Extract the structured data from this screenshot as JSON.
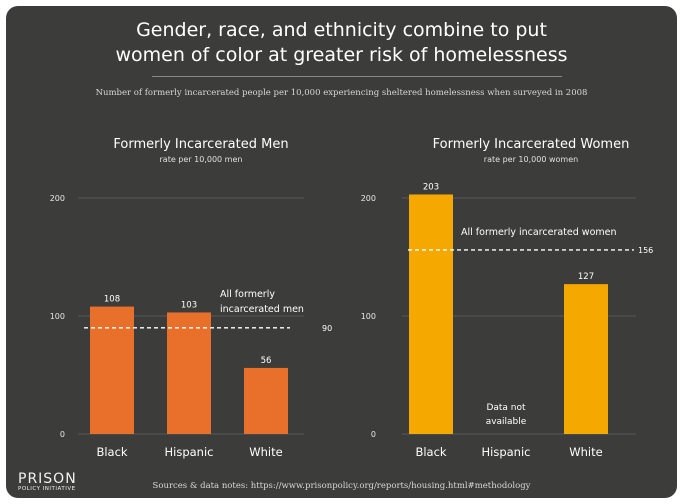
{
  "title_line1": "Gender, race, and ethnicity combine to put",
  "title_line2": "women of color at greater risk of homelessness",
  "subtitle": "Number of formerly incarcerated people per 10,000 experiencing sheltered homelessness when surveyed in 2008",
  "sources": "Sources & data notes: https://www.prisonpolicy.org/reports/housing.html#methodology",
  "logo": {
    "line1": "PRISON",
    "line2": "POLICY INITIATIVE"
  },
  "colors": {
    "background": "#3c3c3a",
    "men_bar": "#e8702a",
    "women_bar": "#f5a800",
    "grid": "#595957",
    "text": "#ffffff"
  },
  "chart_data": [
    {
      "type": "bar",
      "title": "Formerly Incarcerated Men",
      "subtitle": "rate per 10,000 men",
      "categories": [
        "Black",
        "Hispanic",
        "White"
      ],
      "values": [
        108,
        103,
        56
      ],
      "value_labels": [
        "108",
        "103",
        "56"
      ],
      "ylim": [
        0,
        200
      ],
      "yticks": [
        0,
        100,
        200
      ],
      "reference": {
        "value": 90,
        "label_lines": [
          "All formerly",
          "incarcerated men"
        ],
        "value_label": "90"
      },
      "color": "#e8702a",
      "grid": true
    },
    {
      "type": "bar",
      "title": "Formerly Incarcerated Women",
      "subtitle": "rate per 10,000 women",
      "categories": [
        "Black",
        "Hispanic",
        "White"
      ],
      "values": [
        203,
        null,
        127
      ],
      "value_labels": [
        "203",
        "",
        "127"
      ],
      "missing_note_lines": [
        "Data not",
        "available"
      ],
      "ylim": [
        0,
        200
      ],
      "yticks": [
        0,
        100,
        200
      ],
      "reference": {
        "value": 156,
        "label_lines": [
          "All formerly incarcerated women"
        ],
        "value_label": "156"
      },
      "color": "#f5a800",
      "grid": true
    }
  ]
}
